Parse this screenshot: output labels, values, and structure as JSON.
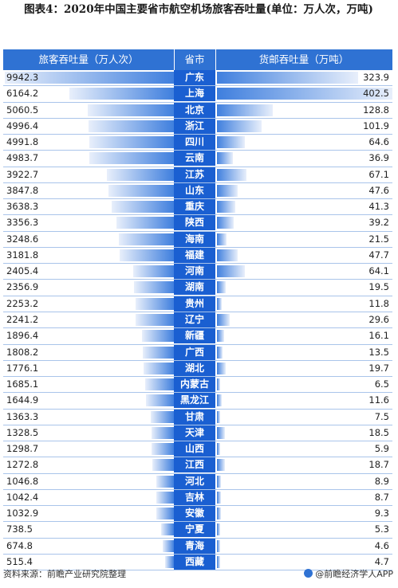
{
  "title": "图表4：2020年中国主要省市航空机场旅客吞吐量(单位：万人次，万吨)",
  "header": {
    "passenger": "旅客吞吐量（万人次）",
    "province": "省市",
    "cargo": "货邮吞吐量（万吨）"
  },
  "colors": {
    "header_bg": "#2f72d3",
    "province_bg": "#1a5fd1",
    "bar_blue": "#3f7fde",
    "bar_light": "#e8effb"
  },
  "chart_data": {
    "type": "bar",
    "categories": [
      "广东",
      "上海",
      "北京",
      "浙江",
      "四川",
      "云南",
      "江苏",
      "山东",
      "重庆",
      "陕西",
      "海南",
      "福建",
      "河南",
      "湖南",
      "贵州",
      "辽宁",
      "新疆",
      "广西",
      "湖北",
      "内蒙古",
      "黑龙江",
      "甘肃",
      "天津",
      "山西",
      "江西",
      "河北",
      "吉林",
      "安徽",
      "宁夏",
      "青海",
      "西藏"
    ],
    "series": [
      {
        "name": "旅客吞吐量（万人次）",
        "values": [
          "9942.3",
          "6164.2",
          "5060.5",
          "4996.4",
          "4991.8",
          "4983.7",
          "3922.7",
          "3847.8",
          "3638.3",
          "3356.3",
          "3248.6",
          "3181.8",
          "2405.4",
          "2356.9",
          "2253.2",
          "2241.2",
          "1896.4",
          "1808.2",
          "1776.1",
          "1685.1",
          "1644.9",
          "1363.3",
          "1328.5",
          "1298.7",
          "1272.8",
          "1046.8",
          "1042.4",
          "1032.9",
          "738.5",
          "674.8",
          "515.4"
        ]
      },
      {
        "name": "货邮吞吐量（万吨）",
        "values": [
          "323.9",
          "402.5",
          "128.8",
          "101.9",
          "64.6",
          "36.9",
          "67.1",
          "47.6",
          "41.3",
          "39.2",
          "21.5",
          "47.7",
          "64.1",
          "19.5",
          "11.8",
          "29.6",
          "16.1",
          "13.5",
          "19.7",
          "6.5",
          "11.6",
          "7.5",
          "18.5",
          "5.9",
          "18.7",
          "8.9",
          "8.7",
          "9.3",
          "5.3",
          "4.6",
          "4.7"
        ]
      }
    ]
  },
  "footer": {
    "source": "资料来源：前瞻产业研究院整理",
    "brand": "@前瞻经济学人APP"
  }
}
